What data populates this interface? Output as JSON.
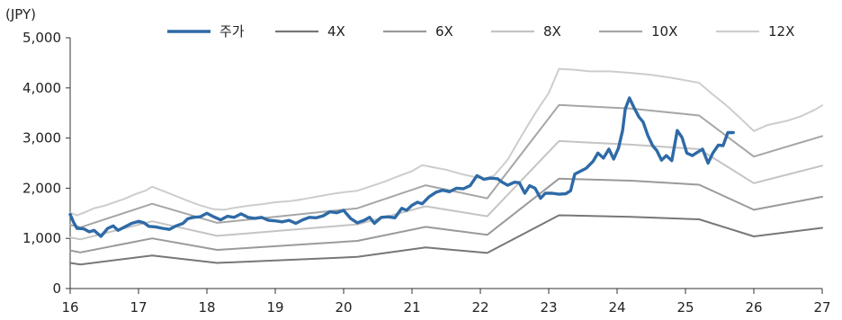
{
  "chart_data": {
    "type": "line",
    "unit_label": "(JPY)",
    "xlim": [
      16,
      27
    ],
    "ylim": [
      0,
      5000
    ],
    "x_ticks": [
      16,
      17,
      18,
      19,
      20,
      21,
      22,
      23,
      24,
      25,
      26,
      27
    ],
    "x_tick_labels": [
      "16",
      "17",
      "18",
      "19",
      "20",
      "21",
      "22",
      "23",
      "24",
      "25",
      "26",
      "27"
    ],
    "y_ticks": [
      0,
      1000,
      2000,
      3000,
      4000,
      5000
    ],
    "y_tick_labels": [
      "0",
      "1,000",
      "2,000",
      "3,000",
      "4,000",
      "5,000"
    ],
    "grid": false,
    "legend_position": "top",
    "series": [
      {
        "name": "주가",
        "color": "#2e6aa6",
        "width": 3.4,
        "points": [
          [
            16.0,
            1480
          ],
          [
            16.05,
            1320
          ],
          [
            16.1,
            1200
          ],
          [
            16.2,
            1190
          ],
          [
            16.28,
            1130
          ],
          [
            16.35,
            1160
          ],
          [
            16.45,
            1040
          ],
          [
            16.55,
            1200
          ],
          [
            16.63,
            1250
          ],
          [
            16.7,
            1160
          ],
          [
            16.8,
            1230
          ],
          [
            16.9,
            1300
          ],
          [
            17.0,
            1340
          ],
          [
            17.08,
            1310
          ],
          [
            17.15,
            1240
          ],
          [
            17.25,
            1230
          ],
          [
            17.35,
            1200
          ],
          [
            17.45,
            1180
          ],
          [
            17.55,
            1250
          ],
          [
            17.65,
            1300
          ],
          [
            17.72,
            1390
          ],
          [
            17.8,
            1420
          ],
          [
            17.9,
            1430
          ],
          [
            18.0,
            1500
          ],
          [
            18.1,
            1430
          ],
          [
            18.2,
            1370
          ],
          [
            18.3,
            1440
          ],
          [
            18.4,
            1420
          ],
          [
            18.5,
            1490
          ],
          [
            18.6,
            1420
          ],
          [
            18.7,
            1400
          ],
          [
            18.8,
            1420
          ],
          [
            18.9,
            1360
          ],
          [
            19.0,
            1350
          ],
          [
            19.1,
            1330
          ],
          [
            19.2,
            1360
          ],
          [
            19.3,
            1300
          ],
          [
            19.4,
            1370
          ],
          [
            19.5,
            1420
          ],
          [
            19.6,
            1410
          ],
          [
            19.7,
            1450
          ],
          [
            19.8,
            1530
          ],
          [
            19.9,
            1510
          ],
          [
            20.0,
            1560
          ],
          [
            20.1,
            1400
          ],
          [
            20.2,
            1310
          ],
          [
            20.3,
            1360
          ],
          [
            20.38,
            1420
          ],
          [
            20.45,
            1300
          ],
          [
            20.55,
            1420
          ],
          [
            20.65,
            1430
          ],
          [
            20.75,
            1410
          ],
          [
            20.85,
            1600
          ],
          [
            20.92,
            1560
          ],
          [
            21.0,
            1660
          ],
          [
            21.08,
            1720
          ],
          [
            21.15,
            1690
          ],
          [
            21.25,
            1830
          ],
          [
            21.35,
            1920
          ],
          [
            21.45,
            1960
          ],
          [
            21.55,
            1930
          ],
          [
            21.65,
            2000
          ],
          [
            21.75,
            1990
          ],
          [
            21.85,
            2050
          ],
          [
            21.95,
            2250
          ],
          [
            22.05,
            2180
          ],
          [
            22.15,
            2200
          ],
          [
            22.25,
            2190
          ],
          [
            22.32,
            2120
          ],
          [
            22.4,
            2060
          ],
          [
            22.5,
            2120
          ],
          [
            22.57,
            2110
          ],
          [
            22.65,
            1900
          ],
          [
            22.72,
            2050
          ],
          [
            22.8,
            2000
          ],
          [
            22.88,
            1800
          ],
          [
            22.95,
            1900
          ],
          [
            23.05,
            1900
          ],
          [
            23.15,
            1880
          ],
          [
            23.25,
            1890
          ],
          [
            23.32,
            1950
          ],
          [
            23.38,
            2280
          ],
          [
            23.45,
            2330
          ],
          [
            23.55,
            2400
          ],
          [
            23.65,
            2540
          ],
          [
            23.72,
            2700
          ],
          [
            23.8,
            2600
          ],
          [
            23.88,
            2780
          ],
          [
            23.95,
            2580
          ],
          [
            24.02,
            2800
          ],
          [
            24.08,
            3150
          ],
          [
            24.12,
            3580
          ],
          [
            24.18,
            3800
          ],
          [
            24.25,
            3600
          ],
          [
            24.32,
            3420
          ],
          [
            24.38,
            3320
          ],
          [
            24.45,
            3050
          ],
          [
            24.52,
            2850
          ],
          [
            24.58,
            2750
          ],
          [
            24.65,
            2560
          ],
          [
            24.72,
            2650
          ],
          [
            24.8,
            2550
          ],
          [
            24.88,
            3150
          ],
          [
            24.95,
            3010
          ],
          [
            25.02,
            2700
          ],
          [
            25.1,
            2650
          ],
          [
            25.18,
            2720
          ],
          [
            25.25,
            2780
          ],
          [
            25.33,
            2500
          ],
          [
            25.4,
            2700
          ],
          [
            25.48,
            2860
          ],
          [
            25.55,
            2850
          ],
          [
            25.62,
            3110
          ],
          [
            25.7,
            3110
          ]
        ]
      },
      {
        "name": "4X",
        "color": "#777777",
        "width": 2.0,
        "points": [
          [
            16.0,
            510
          ],
          [
            16.15,
            480
          ],
          [
            17.2,
            660
          ],
          [
            18.15,
            510
          ],
          [
            20.2,
            630
          ],
          [
            21.2,
            820
          ],
          [
            22.1,
            710
          ],
          [
            23.15,
            1460
          ],
          [
            24.2,
            1430
          ],
          [
            25.2,
            1380
          ],
          [
            26.0,
            1040
          ],
          [
            27.0,
            1210
          ]
        ]
      },
      {
        "name": "6X",
        "color": "#9a9a9a",
        "width": 2.0,
        "points": [
          [
            16.0,
            760
          ],
          [
            16.15,
            720
          ],
          [
            17.2,
            1000
          ],
          [
            18.15,
            770
          ],
          [
            20.2,
            950
          ],
          [
            21.2,
            1230
          ],
          [
            22.1,
            1070
          ],
          [
            23.15,
            2190
          ],
          [
            24.2,
            2150
          ],
          [
            25.2,
            2070
          ],
          [
            26.0,
            1570
          ],
          [
            27.0,
            1830
          ]
        ]
      },
      {
        "name": "8X",
        "color": "#c4c4c4",
        "width": 2.0,
        "points": [
          [
            16.0,
            1020
          ],
          [
            16.15,
            980
          ],
          [
            17.2,
            1340
          ],
          [
            18.15,
            1050
          ],
          [
            20.2,
            1280
          ],
          [
            21.2,
            1640
          ],
          [
            22.1,
            1440
          ],
          [
            23.15,
            2940
          ],
          [
            24.2,
            2870
          ],
          [
            25.2,
            2780
          ],
          [
            26.0,
            2100
          ],
          [
            27.0,
            2450
          ]
        ]
      },
      {
        "name": "10X",
        "color": "#a6a6a6",
        "width": 2.0,
        "points": [
          [
            16.0,
            1270
          ],
          [
            16.15,
            1220
          ],
          [
            17.2,
            1690
          ],
          [
            18.15,
            1310
          ],
          [
            20.2,
            1600
          ],
          [
            21.2,
            2060
          ],
          [
            22.1,
            1800
          ],
          [
            23.15,
            3660
          ],
          [
            24.2,
            3590
          ],
          [
            25.2,
            3450
          ],
          [
            26.0,
            2630
          ],
          [
            27.0,
            3040
          ]
        ]
      },
      {
        "name": "12X",
        "color": "#cdcdcd",
        "width": 2.0,
        "points": [
          [
            16.0,
            1510
          ],
          [
            16.1,
            1460
          ],
          [
            16.2,
            1510
          ],
          [
            16.35,
            1600
          ],
          [
            16.5,
            1650
          ],
          [
            16.65,
            1720
          ],
          [
            16.8,
            1790
          ],
          [
            16.95,
            1880
          ],
          [
            17.1,
            1950
          ],
          [
            17.2,
            2030
          ],
          [
            17.35,
            1950
          ],
          [
            17.5,
            1870
          ],
          [
            17.7,
            1760
          ],
          [
            17.9,
            1660
          ],
          [
            18.1,
            1580
          ],
          [
            18.25,
            1570
          ],
          [
            18.4,
            1610
          ],
          [
            18.6,
            1650
          ],
          [
            18.8,
            1680
          ],
          [
            19.0,
            1720
          ],
          [
            19.2,
            1740
          ],
          [
            19.4,
            1780
          ],
          [
            19.6,
            1830
          ],
          [
            19.8,
            1880
          ],
          [
            20.0,
            1920
          ],
          [
            20.2,
            1950
          ],
          [
            20.4,
            2040
          ],
          [
            20.6,
            2130
          ],
          [
            20.8,
            2240
          ],
          [
            21.0,
            2340
          ],
          [
            21.15,
            2460
          ],
          [
            21.3,
            2420
          ],
          [
            21.5,
            2370
          ],
          [
            21.7,
            2290
          ],
          [
            21.9,
            2230
          ],
          [
            22.05,
            2190
          ],
          [
            22.2,
            2250
          ],
          [
            22.4,
            2570
          ],
          [
            22.6,
            3040
          ],
          [
            22.8,
            3490
          ],
          [
            23.0,
            3900
          ],
          [
            23.15,
            4380
          ],
          [
            23.4,
            4360
          ],
          [
            23.6,
            4330
          ],
          [
            23.9,
            4330
          ],
          [
            24.2,
            4300
          ],
          [
            24.5,
            4260
          ],
          [
            24.8,
            4200
          ],
          [
            25.0,
            4150
          ],
          [
            25.2,
            4100
          ],
          [
            25.4,
            3870
          ],
          [
            25.6,
            3650
          ],
          [
            25.8,
            3400
          ],
          [
            26.0,
            3140
          ],
          [
            26.2,
            3260
          ],
          [
            26.5,
            3350
          ],
          [
            26.7,
            3440
          ],
          [
            26.9,
            3570
          ],
          [
            27.0,
            3650
          ]
        ]
      }
    ]
  }
}
